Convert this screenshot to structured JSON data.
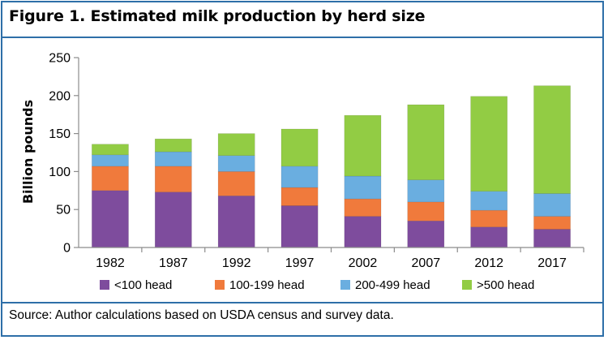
{
  "chart_data": {
    "type": "bar",
    "stacked": true,
    "title": "Figure 1. Estimated milk production by herd size",
    "ylabel": "Billion pounds",
    "xlabel": "",
    "ylim": [
      0,
      250
    ],
    "yticks": [
      0,
      50,
      100,
      150,
      200,
      250
    ],
    "grid": false,
    "legend_position": "bottom",
    "categories": [
      "1982",
      "1987",
      "1992",
      "1997",
      "2002",
      "2007",
      "2012",
      "2017"
    ],
    "series": [
      {
        "name": "<100 head",
        "color": "#7e4c9d",
        "values": [
          75,
          73,
          68,
          55,
          41,
          35,
          27,
          24
        ]
      },
      {
        "name": "100-199 head",
        "color": "#f07a3c",
        "values": [
          32,
          34,
          32,
          24,
          23,
          25,
          22,
          17
        ]
      },
      {
        "name": "200-499 head",
        "color": "#6aaee0",
        "values": [
          15,
          19,
          21,
          28,
          30,
          29,
          25,
          30
        ]
      },
      {
        "name": ">500 head",
        "color": "#92cc44",
        "values": [
          14,
          17,
          29,
          49,
          80,
          99,
          125,
          142
        ]
      }
    ],
    "source": "Source: Author calculations based on USDA census and survey data."
  },
  "colors": {
    "border": "#2e6fa8",
    "axis": "#8c8c8c"
  }
}
